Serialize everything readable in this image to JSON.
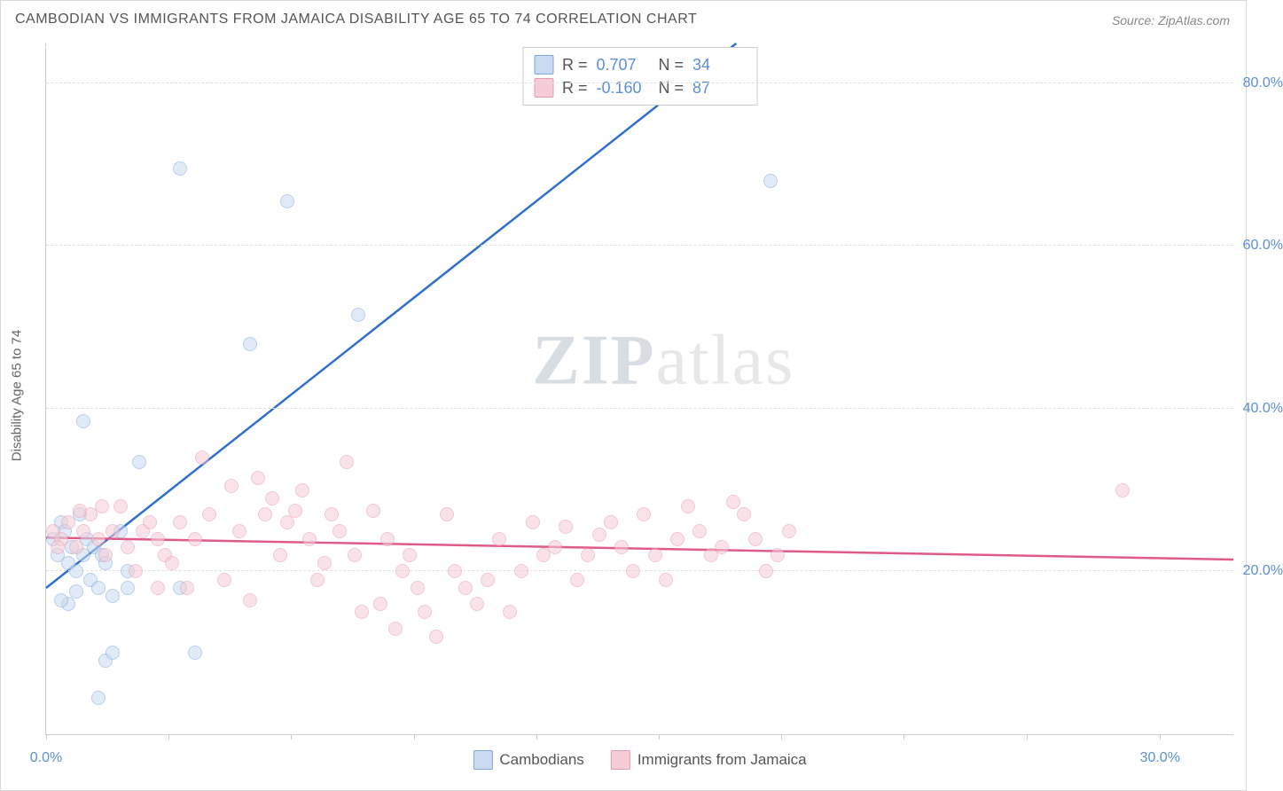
{
  "title": "CAMBODIAN VS IMMIGRANTS FROM JAMAICA DISABILITY AGE 65 TO 74 CORRELATION CHART",
  "source": "Source: ZipAtlas.com",
  "watermark_a": "ZIP",
  "watermark_b": "atlas",
  "y_axis_label": "Disability Age 65 to 74",
  "chart": {
    "type": "scatter",
    "xlim": [
      0,
      32
    ],
    "ylim": [
      0,
      85
    ],
    "x_ticks": [
      0,
      3.3,
      6.6,
      9.9,
      13.2,
      16.5,
      19.8,
      23.1,
      26.4,
      30
    ],
    "x_tick_labels": {
      "0": "0.0%",
      "30": "30.0%"
    },
    "y_gridlines": [
      20,
      40,
      60,
      80
    ],
    "y_tick_labels": {
      "20": "20.0%",
      "40": "40.0%",
      "60": "60.0%",
      "80": "80.0%"
    },
    "background_color": "#ffffff",
    "grid_color": "#e0e0e0",
    "axis_color": "#cccccc",
    "marker_radius": 8,
    "series": [
      {
        "name": "Cambodians",
        "fill": "#c9daf1",
        "stroke": "#7fa8d9",
        "fill_opacity": 0.55,
        "line_color": "#2f6fd0",
        "line_width": 2.5,
        "trend": {
          "x1": 0,
          "y1": 18,
          "x2": 18.6,
          "y2": 85
        },
        "R_label": "R =",
        "R": "0.707",
        "N_label": "N =",
        "N": "34",
        "points": [
          [
            0.2,
            24
          ],
          [
            0.3,
            22
          ],
          [
            0.4,
            26
          ],
          [
            0.5,
            25
          ],
          [
            0.6,
            21
          ],
          [
            0.7,
            23
          ],
          [
            0.8,
            20
          ],
          [
            0.9,
            27
          ],
          [
            1.0,
            22
          ],
          [
            1.1,
            24
          ],
          [
            1.2,
            19
          ],
          [
            1.3,
            23
          ],
          [
            1.4,
            18
          ],
          [
            1.5,
            22
          ],
          [
            1.6,
            21
          ],
          [
            1.8,
            17
          ],
          [
            2.0,
            25
          ],
          [
            2.2,
            20
          ],
          [
            1.0,
            38.5
          ],
          [
            1.6,
            9
          ],
          [
            1.8,
            10
          ],
          [
            2.5,
            33.5
          ],
          [
            2.2,
            18
          ],
          [
            3.6,
            18
          ],
          [
            4.0,
            10
          ],
          [
            3.6,
            69.5
          ],
          [
            5.5,
            48
          ],
          [
            6.5,
            65.5
          ],
          [
            8.4,
            51.5
          ],
          [
            0.6,
            16
          ],
          [
            0.4,
            16.5
          ],
          [
            1.4,
            4.5
          ],
          [
            19.5,
            68
          ],
          [
            0.8,
            17.5
          ]
        ]
      },
      {
        "name": "Immigrants from Jamaica",
        "fill": "#f6cdd7",
        "stroke": "#e69ab0",
        "fill_opacity": 0.55,
        "line_color": "#e05a87",
        "line_width": 2.5,
        "trend": {
          "x1": 0,
          "y1": 24.2,
          "x2": 32,
          "y2": 21.5
        },
        "R_label": "R =",
        "R": "-0.160",
        "N_label": "N =",
        "N": "87",
        "points": [
          [
            0.2,
            25
          ],
          [
            0.4,
            24
          ],
          [
            0.6,
            26
          ],
          [
            0.8,
            23
          ],
          [
            1.0,
            25
          ],
          [
            1.2,
            27
          ],
          [
            1.4,
            24
          ],
          [
            1.6,
            22
          ],
          [
            1.8,
            25
          ],
          [
            2.0,
            28
          ],
          [
            2.2,
            23
          ],
          [
            2.4,
            20
          ],
          [
            2.6,
            25
          ],
          [
            2.8,
            26
          ],
          [
            3.0,
            24
          ],
          [
            3.2,
            22
          ],
          [
            3.4,
            21
          ],
          [
            3.6,
            26
          ],
          [
            3.8,
            18
          ],
          [
            4.0,
            24
          ],
          [
            4.2,
            34
          ],
          [
            4.4,
            27
          ],
          [
            4.8,
            19
          ],
          [
            5.0,
            30.5
          ],
          [
            5.2,
            25
          ],
          [
            5.5,
            16.5
          ],
          [
            5.7,
            31.5
          ],
          [
            5.9,
            27
          ],
          [
            6.1,
            29
          ],
          [
            6.3,
            22
          ],
          [
            6.5,
            26
          ],
          [
            6.7,
            27.5
          ],
          [
            6.9,
            30
          ],
          [
            7.1,
            24
          ],
          [
            7.3,
            19
          ],
          [
            7.5,
            21
          ],
          [
            7.7,
            27
          ],
          [
            7.9,
            25
          ],
          [
            8.1,
            33.5
          ],
          [
            8.3,
            22
          ],
          [
            8.5,
            15
          ],
          [
            8.8,
            27.5
          ],
          [
            9.0,
            16
          ],
          [
            9.2,
            24
          ],
          [
            9.4,
            13
          ],
          [
            9.6,
            20
          ],
          [
            9.8,
            22
          ],
          [
            10.0,
            18
          ],
          [
            10.2,
            15
          ],
          [
            10.5,
            12
          ],
          [
            10.8,
            27
          ],
          [
            11.0,
            20
          ],
          [
            11.3,
            18
          ],
          [
            11.6,
            16
          ],
          [
            11.9,
            19
          ],
          [
            12.2,
            24
          ],
          [
            12.5,
            15
          ],
          [
            12.8,
            20
          ],
          [
            13.1,
            26
          ],
          [
            13.4,
            22
          ],
          [
            13.7,
            23
          ],
          [
            14.0,
            25.5
          ],
          [
            14.3,
            19
          ],
          [
            14.6,
            22
          ],
          [
            14.9,
            24.5
          ],
          [
            15.2,
            26
          ],
          [
            15.5,
            23
          ],
          [
            15.8,
            20
          ],
          [
            16.1,
            27
          ],
          [
            16.4,
            22
          ],
          [
            16.7,
            19
          ],
          [
            17.0,
            24
          ],
          [
            17.3,
            28
          ],
          [
            17.6,
            25
          ],
          [
            17.9,
            22
          ],
          [
            18.2,
            23
          ],
          [
            18.5,
            28.5
          ],
          [
            18.8,
            27
          ],
          [
            19.1,
            24
          ],
          [
            19.4,
            20
          ],
          [
            19.7,
            22
          ],
          [
            20.0,
            25
          ],
          [
            29.0,
            30
          ],
          [
            3.0,
            18
          ],
          [
            0.9,
            27.5
          ],
          [
            1.5,
            28
          ],
          [
            0.3,
            23
          ]
        ]
      }
    ]
  },
  "legend_bottom": [
    {
      "label": "Cambodians",
      "fill": "#c9daf1",
      "stroke": "#7fa8d9"
    },
    {
      "label": "Immigrants from Jamaica",
      "fill": "#f6cdd7",
      "stroke": "#e69ab0"
    }
  ]
}
